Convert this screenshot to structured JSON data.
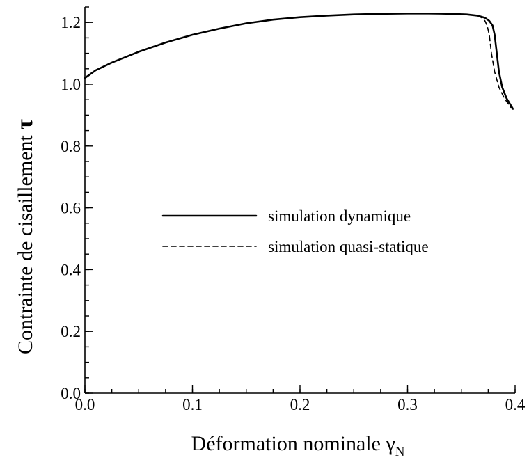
{
  "chart_data": {
    "type": "line",
    "title": "",
    "xlabel": {
      "main": "Déformation nominale ",
      "symbol": "γ",
      "subscript": "N"
    },
    "ylabel": {
      "main": "Contrainte de cisaillement ",
      "symbol": "τ"
    },
    "xlim": [
      0.0,
      0.4
    ],
    "ylim": [
      0.0,
      1.25
    ],
    "x_ticks": [
      {
        "value": 0.0,
        "label": "0.0"
      },
      {
        "value": 0.1,
        "label": "0.1"
      },
      {
        "value": 0.2,
        "label": "0.2"
      },
      {
        "value": 0.3,
        "label": "0.3"
      },
      {
        "value": 0.4,
        "label": "0.4"
      }
    ],
    "y_ticks": [
      {
        "value": 0.0,
        "label": "0.0"
      },
      {
        "value": 0.2,
        "label": "0.2"
      },
      {
        "value": 0.4,
        "label": "0.4"
      },
      {
        "value": 0.6,
        "label": "0.6"
      },
      {
        "value": 0.8,
        "label": "0.8"
      },
      {
        "value": 1.0,
        "label": "1.0"
      },
      {
        "value": 1.2,
        "label": "1.2"
      }
    ],
    "x_minor_step": 0.025,
    "y_minor_step": 0.05,
    "grid": false,
    "legend_position": "center",
    "series": [
      {
        "name": "simulation dynamique",
        "style": "solid",
        "x": [
          0.0,
          0.01,
          0.025,
          0.05,
          0.075,
          0.1,
          0.125,
          0.15,
          0.175,
          0.2,
          0.225,
          0.25,
          0.275,
          0.3,
          0.32,
          0.34,
          0.355,
          0.365,
          0.372,
          0.376,
          0.379,
          0.381,
          0.383,
          0.385,
          0.388,
          0.392,
          0.398
        ],
        "y": [
          1.02,
          1.045,
          1.07,
          1.105,
          1.135,
          1.16,
          1.18,
          1.197,
          1.209,
          1.217,
          1.222,
          1.226,
          1.228,
          1.229,
          1.229,
          1.228,
          1.226,
          1.222,
          1.215,
          1.205,
          1.19,
          1.16,
          1.1,
          1.04,
          0.99,
          0.955,
          0.92
        ]
      },
      {
        "name": "simulation quasi-statique",
        "style": "dashed",
        "x": [
          0.365,
          0.369,
          0.372,
          0.374,
          0.376,
          0.378,
          0.381,
          0.385,
          0.39,
          0.396
        ],
        "y": [
          1.222,
          1.215,
          1.205,
          1.19,
          1.16,
          1.1,
          1.04,
          0.99,
          0.955,
          0.925
        ]
      }
    ]
  }
}
